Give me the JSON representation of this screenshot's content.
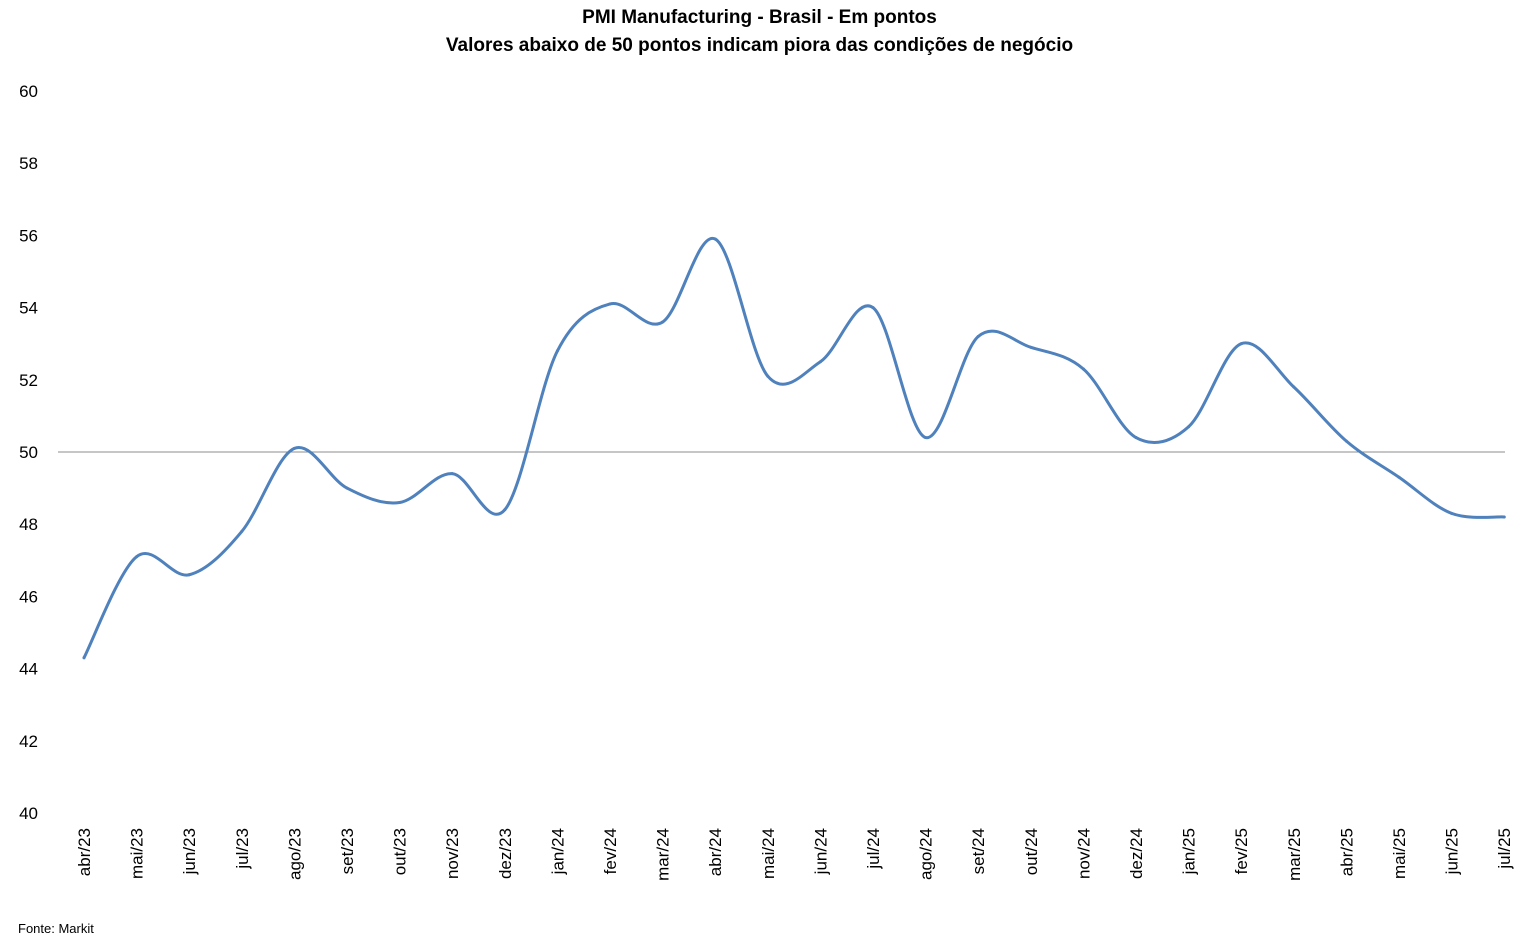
{
  "chart_data": {
    "type": "line",
    "title": "PMI Manufacturing - Brasil - Em pontos",
    "subtitle": "Valores abaixo de 50 pontos indicam piora das condições de negócio",
    "xlabel": "",
    "ylabel": "",
    "ylim": [
      40,
      60
    ],
    "yticks": [
      "40",
      "42",
      "44",
      "46",
      "48",
      "50",
      "52",
      "54",
      "56",
      "58",
      "60"
    ],
    "reference_line": 50,
    "grid": false,
    "legend": "none",
    "categories": [
      "abr/23",
      "mai/23",
      "jun/23",
      "jul/23",
      "ago/23",
      "set/23",
      "out/23",
      "nov/23",
      "dez/23",
      "jan/24",
      "fev/24",
      "mar/24",
      "abr/24",
      "mai/24",
      "jun/24",
      "jul/24",
      "ago/24",
      "set/24",
      "out/24",
      "nov/24",
      "dez/24",
      "jan/25",
      "fev/25",
      "mar/25",
      "abr/25",
      "mai/25",
      "jun/25",
      "jul/25"
    ],
    "series": [
      {
        "name": "",
        "color": "#4f81bd",
        "values": [
          44.3,
          47.1,
          46.6,
          47.8,
          50.1,
          49.0,
          48.6,
          49.4,
          48.4,
          52.8,
          54.1,
          53.6,
          55.9,
          52.1,
          52.5,
          54.0,
          50.4,
          53.2,
          52.9,
          52.3,
          50.4,
          50.7,
          53.0,
          51.8,
          50.3,
          49.3,
          48.3,
          48.2
        ]
      }
    ]
  },
  "source": "Fonte: Markit"
}
